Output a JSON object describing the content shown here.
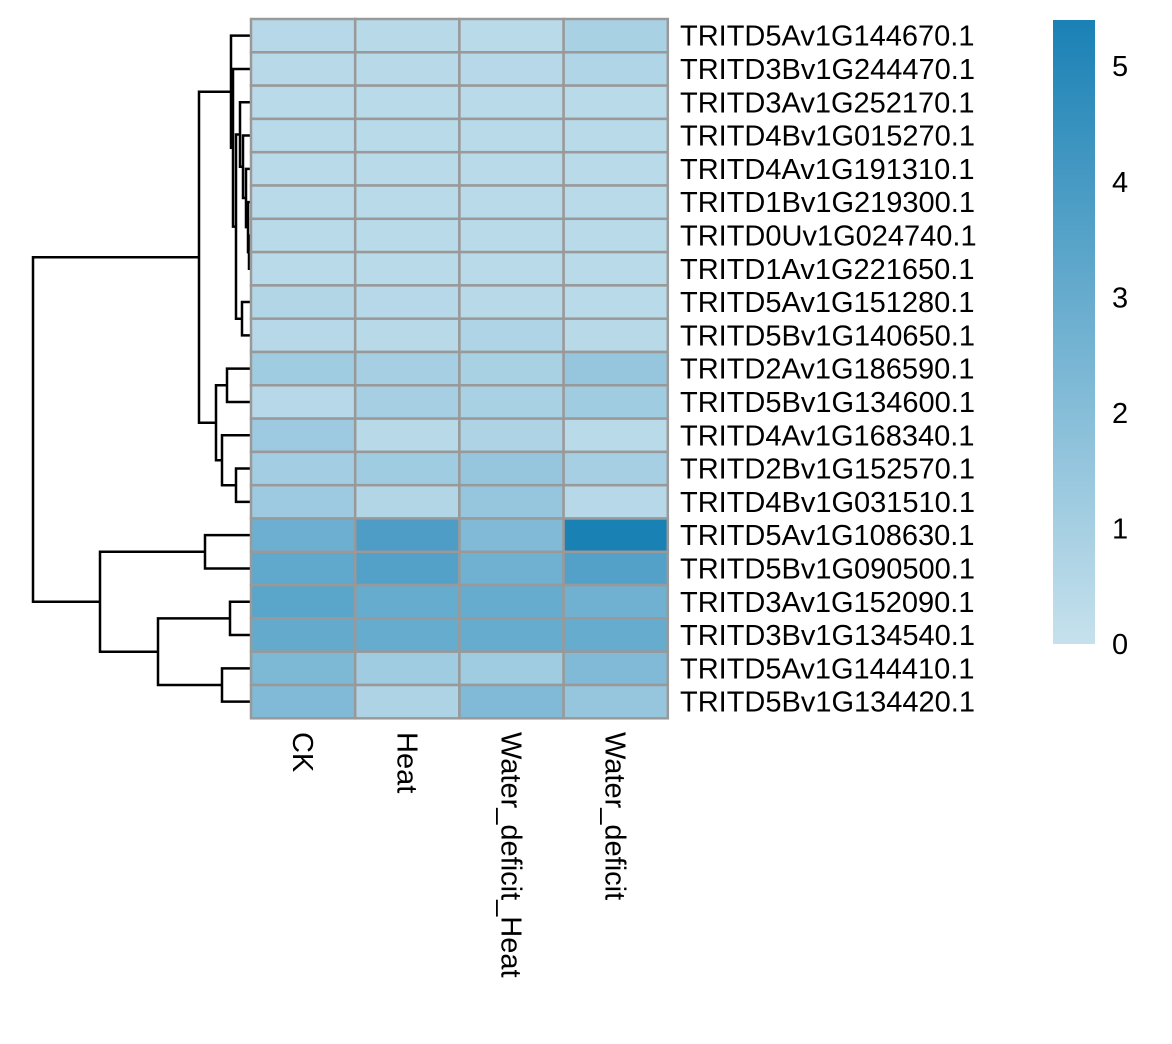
{
  "chart_data": {
    "type": "heatmap",
    "title": "",
    "xlabel": "",
    "ylabel": "",
    "columns": [
      "CK",
      "Heat",
      "Water_deficit_Heat",
      "Water_deficit"
    ],
    "rows": [
      "TRITD5Av1G144670.1",
      "TRITD3Bv1G244470.1",
      "TRITD3Av1G252170.1",
      "TRITD4Bv1G015270.1",
      "TRITD4Av1G191310.1",
      "TRITD1Bv1G219300.1",
      "TRITD0Uv1G024740.1",
      "TRITD1Av1G221650.1",
      "TRITD5Av1G151280.1",
      "TRITD5Bv1G140650.1",
      "TRITD2Av1G186590.1",
      "TRITD5Bv1G134600.1",
      "TRITD4Av1G168340.1",
      "TRITD2Bv1G152570.1",
      "TRITD4Bv1G031510.1",
      "TRITD5Av1G108630.1",
      "TRITD5Bv1G090500.1",
      "TRITD3Av1G152090.1",
      "TRITD3Bv1G134540.1",
      "TRITD5Av1G144410.1",
      "TRITD5Bv1G134420.1"
    ],
    "values": [
      [
        0.5,
        0.45,
        0.4,
        0.9
      ],
      [
        0.45,
        0.45,
        0.5,
        0.7
      ],
      [
        0.4,
        0.4,
        0.4,
        0.4
      ],
      [
        0.4,
        0.4,
        0.4,
        0.4
      ],
      [
        0.4,
        0.4,
        0.4,
        0.4
      ],
      [
        0.4,
        0.4,
        0.4,
        0.4
      ],
      [
        0.4,
        0.4,
        0.4,
        0.4
      ],
      [
        0.4,
        0.4,
        0.4,
        0.4
      ],
      [
        0.6,
        0.5,
        0.45,
        0.4
      ],
      [
        0.5,
        0.45,
        0.75,
        0.45
      ],
      [
        1.2,
        1.0,
        0.9,
        1.5
      ],
      [
        0.5,
        1.0,
        0.9,
        1.2
      ],
      [
        1.3,
        0.45,
        0.8,
        0.4
      ],
      [
        1.1,
        1.2,
        1.5,
        1.0
      ],
      [
        1.3,
        0.6,
        1.5,
        0.5
      ],
      [
        2.8,
        3.8,
        2.2,
        5.4
      ],
      [
        3.2,
        3.6,
        2.7,
        3.6
      ],
      [
        3.4,
        3.0,
        3.0,
        2.7
      ],
      [
        3.1,
        3.0,
        3.0,
        3.0
      ],
      [
        2.3,
        1.2,
        1.2,
        2.2
      ],
      [
        2.2,
        0.8,
        2.2,
        1.5
      ]
    ],
    "color_scale": {
      "min": 0,
      "max": 5.4,
      "low_color": "#c6e1ed",
      "high_color": "#1a81b5"
    },
    "legend": {
      "ticks": [
        0,
        1,
        2,
        3,
        4,
        5
      ],
      "placement": "right"
    },
    "cell_border_color": "#999999",
    "grid": true
  }
}
